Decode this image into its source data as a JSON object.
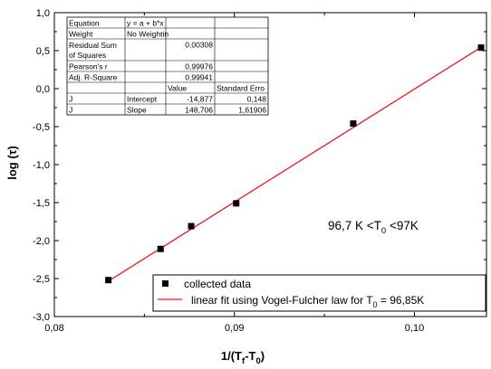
{
  "chart_data": {
    "type": "scatter",
    "xlabel": "1/(T",
    "xlabel_sub_f": "f",
    "xlabel_mid": "-T",
    "xlabel_sub_0": "0",
    "xlabel_end": ")",
    "ylabel": "log (τ)",
    "xlim": [
      0.08,
      0.104
    ],
    "ylim": [
      -3.0,
      1.0
    ],
    "x_ticks": [
      0.08,
      0.09,
      0.1
    ],
    "x_tick_labels": [
      "0,08",
      "0,09",
      "0,10"
    ],
    "y_ticks": [
      1.0,
      0.5,
      0.0,
      -0.5,
      -1.0,
      -1.5,
      -2.0,
      -2.5,
      -3.0
    ],
    "y_tick_labels": [
      "1,0",
      "0,5",
      "0,0",
      "-0,5",
      "-1,0",
      "-1,5",
      "-2,0",
      "-2,5",
      "-3,0"
    ],
    "series": [
      {
        "name": "collected data",
        "kind": "scatter",
        "marker": "square",
        "color": "#000000",
        "x": [
          0.083,
          0.0859,
          0.0876,
          0.0901,
          0.0966,
          0.1037
        ],
        "y": [
          -2.52,
          -2.11,
          -1.81,
          -1.51,
          -0.46,
          0.54
        ]
      },
      {
        "name": "linear fit using Vogel-Fulcher law for T",
        "name_sub": "0",
        "name_tail": " = 96,85K",
        "kind": "line",
        "color": "#e8141b",
        "x": [
          0.083,
          0.1037
        ],
        "y": [
          -2.534,
          0.544
        ]
      }
    ],
    "annotation": {
      "pre": "96,7 K <T",
      "sub": "0",
      "post": " <97K"
    },
    "legend_position": "bottom-right",
    "fit_table": {
      "rows": [
        [
          "Equation",
          "y = a + b*x",
          "",
          ""
        ],
        [
          "Weight",
          "No Weightin",
          "",
          ""
        ],
        [
          "Residual Sum of Squares",
          "",
          "0,00308",
          ""
        ],
        [
          "Pearson's r",
          "",
          "0,99976",
          ""
        ],
        [
          "Adj. R-Square",
          "",
          "0,99941",
          ""
        ],
        [
          "",
          "",
          "Value",
          "Standard Erro"
        ],
        [
          "J",
          "Intercept",
          "-14,877",
          "0,148"
        ],
        [
          "J",
          "Slope",
          "148,706",
          "1,61906"
        ]
      ]
    }
  }
}
